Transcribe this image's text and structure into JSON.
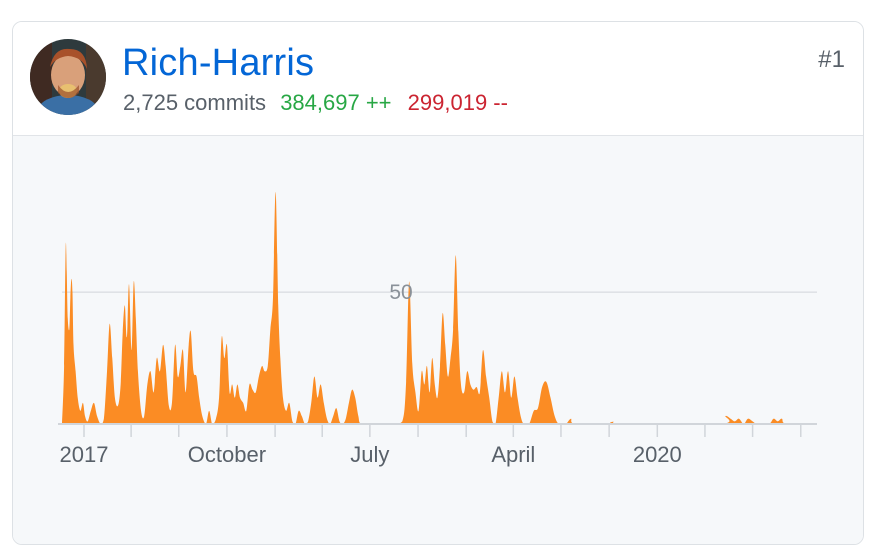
{
  "user": {
    "name": "Rich-Harris",
    "commits": "2,725 commits",
    "additions": "384,697 ++",
    "deletions": "299,019 --",
    "rank": "#1"
  },
  "colors": {
    "area": "#fb8c24",
    "link": "#0366d6",
    "additions": "#28a745",
    "deletions": "#cb2431",
    "muted": "#586069"
  },
  "chart_data": {
    "type": "area",
    "title": "",
    "xlabel": "",
    "ylabel": "",
    "ylim": [
      0,
      88
    ],
    "yticks": [
      50
    ],
    "ytick_labels": [
      "50"
    ],
    "x_start": "2016-11-20",
    "x_end": "2020-11-01",
    "xtick_labels": [
      "2017",
      "October",
      "July",
      "April",
      "2020"
    ],
    "xtick_dates": [
      "2017-01-01",
      "2017-10-01",
      "2018-07-01",
      "2019-04-01",
      "2020-01-01"
    ],
    "minor_tick_dates": [
      "2017-04-01",
      "2017-07-01",
      "2018-01-01",
      "2018-04-01",
      "2018-10-01",
      "2019-01-01",
      "2019-07-01",
      "2019-10-01",
      "2020-04-01",
      "2020-07-01",
      "2020-10-01"
    ],
    "series": [
      {
        "name": "",
        "points": [
          [
            "2016-11-20",
            0
          ],
          [
            "2016-11-24",
            22
          ],
          [
            "2016-11-27",
            67
          ],
          [
            "2016-11-29",
            58
          ],
          [
            "2016-12-01",
            40
          ],
          [
            "2016-12-04",
            36
          ],
          [
            "2016-12-06",
            48
          ],
          [
            "2016-12-08",
            55
          ],
          [
            "2016-12-10",
            50
          ],
          [
            "2016-12-12",
            30
          ],
          [
            "2016-12-16",
            20
          ],
          [
            "2016-12-20",
            10
          ],
          [
            "2016-12-25",
            5
          ],
          [
            "2016-12-30",
            8
          ],
          [
            "2017-01-03",
            3
          ],
          [
            "2017-01-08",
            1
          ],
          [
            "2017-01-14",
            5
          ],
          [
            "2017-01-20",
            8
          ],
          [
            "2017-01-26",
            3
          ],
          [
            "2017-02-02",
            0
          ],
          [
            "2017-02-08",
            2
          ],
          [
            "2017-02-14",
            20
          ],
          [
            "2017-02-19",
            38
          ],
          [
            "2017-02-24",
            25
          ],
          [
            "2017-03-01",
            10
          ],
          [
            "2017-03-07",
            7
          ],
          [
            "2017-03-12",
            15
          ],
          [
            "2017-03-16",
            35
          ],
          [
            "2017-03-20",
            45
          ],
          [
            "2017-03-24",
            33
          ],
          [
            "2017-03-28",
            53
          ],
          [
            "2017-04-02",
            28
          ],
          [
            "2017-04-06",
            54
          ],
          [
            "2017-04-10",
            40
          ],
          [
            "2017-04-14",
            20
          ],
          [
            "2017-04-20",
            5
          ],
          [
            "2017-04-26",
            3
          ],
          [
            "2017-05-02",
            15
          ],
          [
            "2017-05-08",
            20
          ],
          [
            "2017-05-14",
            12
          ],
          [
            "2017-05-20",
            25
          ],
          [
            "2017-05-26",
            20
          ],
          [
            "2017-06-01",
            30
          ],
          [
            "2017-06-06",
            22
          ],
          [
            "2017-06-12",
            7
          ],
          [
            "2017-06-18",
            8
          ],
          [
            "2017-06-24",
            30
          ],
          [
            "2017-06-29",
            18
          ],
          [
            "2017-07-04",
            22
          ],
          [
            "2017-07-09",
            28
          ],
          [
            "2017-07-14",
            12
          ],
          [
            "2017-07-20",
            30
          ],
          [
            "2017-07-24",
            35
          ],
          [
            "2017-07-29",
            20
          ],
          [
            "2017-08-04",
            18
          ],
          [
            "2017-08-09",
            10
          ],
          [
            "2017-08-15",
            3
          ],
          [
            "2017-08-22",
            0
          ],
          [
            "2017-08-28",
            5
          ],
          [
            "2017-09-03",
            0
          ],
          [
            "2017-09-10",
            2
          ],
          [
            "2017-09-16",
            10
          ],
          [
            "2017-09-21",
            33
          ],
          [
            "2017-09-26",
            25
          ],
          [
            "2017-10-01",
            30
          ],
          [
            "2017-10-06",
            12
          ],
          [
            "2017-10-11",
            15
          ],
          [
            "2017-10-16",
            10
          ],
          [
            "2017-10-21",
            15
          ],
          [
            "2017-10-26",
            10
          ],
          [
            "2017-11-01",
            8
          ],
          [
            "2017-11-07",
            5
          ],
          [
            "2017-11-13",
            15
          ],
          [
            "2017-11-19",
            13
          ],
          [
            "2017-11-25",
            12
          ],
          [
            "2017-12-01",
            18
          ],
          [
            "2017-12-07",
            22
          ],
          [
            "2017-12-12",
            20
          ],
          [
            "2017-12-18",
            22
          ],
          [
            "2017-12-23",
            36
          ],
          [
            "2017-12-28",
            48
          ],
          [
            "2018-01-02",
            88
          ],
          [
            "2018-01-07",
            45
          ],
          [
            "2018-01-11",
            25
          ],
          [
            "2018-01-16",
            10
          ],
          [
            "2018-01-22",
            5
          ],
          [
            "2018-01-28",
            8
          ],
          [
            "2018-02-03",
            1
          ],
          [
            "2018-02-09",
            0
          ],
          [
            "2018-02-15",
            5
          ],
          [
            "2018-02-21",
            3
          ],
          [
            "2018-02-27",
            0
          ],
          [
            "2018-03-05",
            1
          ],
          [
            "2018-03-11",
            8
          ],
          [
            "2018-03-17",
            18
          ],
          [
            "2018-03-23",
            10
          ],
          [
            "2018-03-29",
            15
          ],
          [
            "2018-04-04",
            8
          ],
          [
            "2018-04-10",
            2
          ],
          [
            "2018-04-16",
            0
          ],
          [
            "2018-04-22",
            3
          ],
          [
            "2018-04-28",
            6
          ],
          [
            "2018-05-04",
            1
          ],
          [
            "2018-05-10",
            0
          ],
          [
            "2018-05-16",
            2
          ],
          [
            "2018-05-22",
            8
          ],
          [
            "2018-05-28",
            13
          ],
          [
            "2018-06-03",
            10
          ],
          [
            "2018-06-09",
            3
          ],
          [
            "2018-06-15",
            0
          ],
          [
            "2018-07-15",
            0
          ],
          [
            "2018-08-15",
            0
          ],
          [
            "2018-09-01",
            1
          ],
          [
            "2018-09-08",
            15
          ],
          [
            "2018-09-14",
            54
          ],
          [
            "2018-09-20",
            23
          ],
          [
            "2018-09-26",
            12
          ],
          [
            "2018-10-02",
            5
          ],
          [
            "2018-10-08",
            20
          ],
          [
            "2018-10-13",
            15
          ],
          [
            "2018-10-18",
            22
          ],
          [
            "2018-10-23",
            12
          ],
          [
            "2018-10-28",
            25
          ],
          [
            "2018-11-02",
            15
          ],
          [
            "2018-11-07",
            10
          ],
          [
            "2018-11-12",
            22
          ],
          [
            "2018-11-17",
            42
          ],
          [
            "2018-11-22",
            30
          ],
          [
            "2018-11-27",
            18
          ],
          [
            "2018-12-02",
            25
          ],
          [
            "2018-12-07",
            36
          ],
          [
            "2018-12-12",
            64
          ],
          [
            "2018-12-17",
            35
          ],
          [
            "2018-12-22",
            15
          ],
          [
            "2018-12-28",
            12
          ],
          [
            "2019-01-03",
            20
          ],
          [
            "2019-01-09",
            15
          ],
          [
            "2019-01-15",
            13
          ],
          [
            "2019-01-21",
            14
          ],
          [
            "2019-01-27",
            12
          ],
          [
            "2019-02-02",
            28
          ],
          [
            "2019-02-08",
            18
          ],
          [
            "2019-02-14",
            10
          ],
          [
            "2019-02-20",
            1
          ],
          [
            "2019-02-26",
            0
          ],
          [
            "2019-03-04",
            10
          ],
          [
            "2019-03-10",
            20
          ],
          [
            "2019-03-16",
            12
          ],
          [
            "2019-03-22",
            20
          ],
          [
            "2019-03-28",
            10
          ],
          [
            "2019-04-03",
            18
          ],
          [
            "2019-04-09",
            10
          ],
          [
            "2019-04-15",
            3
          ],
          [
            "2019-04-21",
            0
          ],
          [
            "2019-05-01",
            0
          ],
          [
            "2019-05-10",
            5
          ],
          [
            "2019-05-18",
            6
          ],
          [
            "2019-05-26",
            14
          ],
          [
            "2019-06-03",
            16
          ],
          [
            "2019-06-11",
            10
          ],
          [
            "2019-06-19",
            3
          ],
          [
            "2019-06-27",
            0
          ],
          [
            "2019-07-10",
            0
          ],
          [
            "2019-07-20",
            2
          ],
          [
            "2019-07-28",
            0
          ],
          [
            "2019-10-01",
            0
          ],
          [
            "2019-10-10",
            1
          ],
          [
            "2019-10-20",
            0
          ],
          [
            "2020-05-01",
            0
          ],
          [
            "2020-05-10",
            3
          ],
          [
            "2020-05-20",
            2
          ],
          [
            "2020-05-28",
            1
          ],
          [
            "2020-06-05",
            2
          ],
          [
            "2020-06-14",
            0
          ],
          [
            "2020-06-22",
            2
          ],
          [
            "2020-07-01",
            1
          ],
          [
            "2020-07-10",
            0
          ],
          [
            "2020-08-01",
            0
          ],
          [
            "2020-08-10",
            2
          ],
          [
            "2020-08-18",
            1
          ],
          [
            "2020-08-26",
            2
          ],
          [
            "2020-09-04",
            0
          ],
          [
            "2020-11-01",
            0
          ]
        ]
      }
    ],
    "grid": true
  }
}
